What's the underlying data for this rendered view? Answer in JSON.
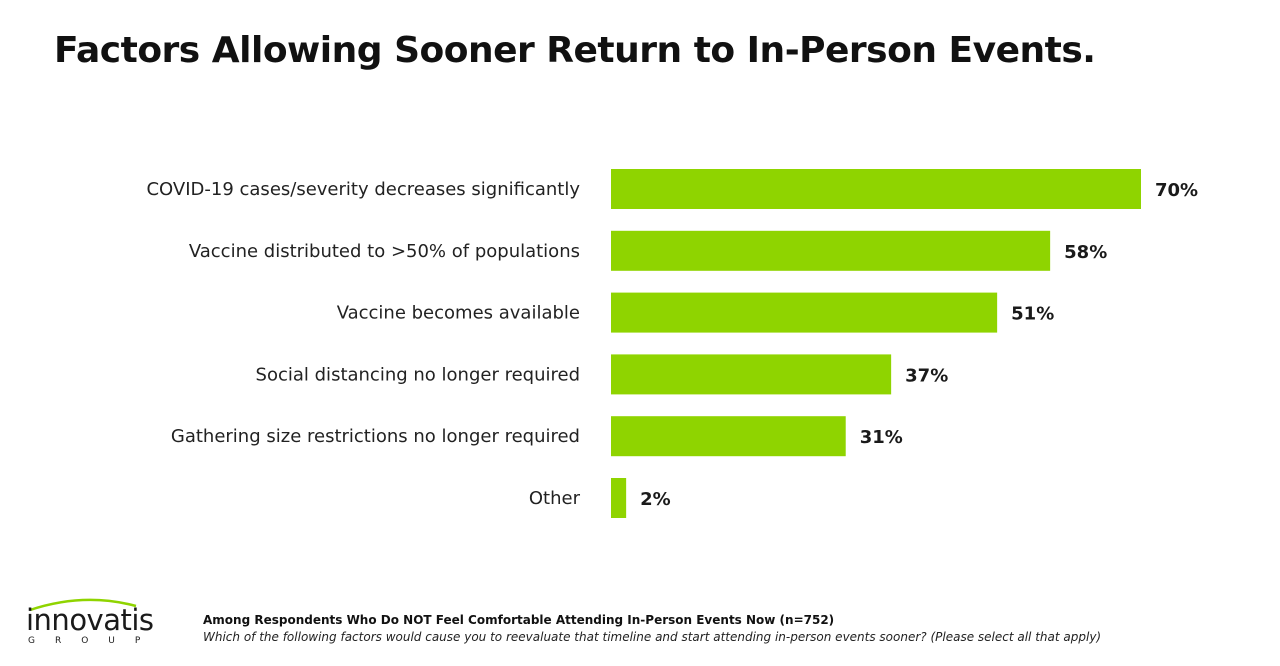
{
  "title": "Factors Allowing Sooner Return to In-Person Events.",
  "footnote": {
    "base": "Among Respondents Who Do NOT Feel Comfortable Attending In-Person Events Now (n=752)",
    "question": "Which of the following factors would cause you to reevaluate that timeline and start attending in-person events sooner? (Please select all that apply)"
  },
  "logo": {
    "wordmark": "innovatis",
    "subword": "GROUP"
  },
  "colors": {
    "bar": "#8fd400",
    "logo_arc": "#8fd400"
  },
  "chart_data": {
    "type": "bar",
    "orientation": "horizontal",
    "categories": [
      "COVID-19 cases/severity decreases significantly",
      "Vaccine distributed to >50% of populations",
      "Vaccine becomes available",
      "Social distancing no longer required",
      "Gathering size restrictions no longer required",
      "Other"
    ],
    "values": [
      70,
      58,
      51,
      37,
      31,
      2
    ],
    "value_labels": [
      "70%",
      "58%",
      "51%",
      "37%",
      "31%",
      "2%"
    ],
    "unit": "%",
    "xlim": [
      0,
      70
    ],
    "grid": false,
    "legend": "none"
  }
}
